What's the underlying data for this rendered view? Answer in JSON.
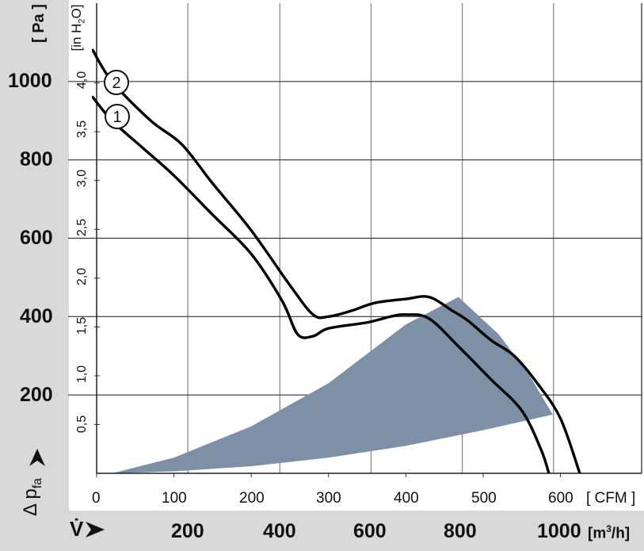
{
  "chart_data": {
    "type": "line",
    "axes": {
      "pressure_pa": {
        "unit": "[ Pa ]",
        "ticks": [
          "1000",
          "800",
          "600",
          "400",
          "200"
        ],
        "tick_values": [
          1000,
          800,
          600,
          400,
          200
        ],
        "range": [
          0,
          1200
        ]
      },
      "pressure_inh2o": {
        "unit": "[in H2O]",
        "unit_parts": [
          "[in H",
          "2",
          "O]"
        ],
        "ticks": [
          "4,0",
          "3,5",
          "3,0",
          "2,5",
          "2,0",
          "1,5",
          "1,0",
          "0,5"
        ],
        "tick_values": [
          4.0,
          3.5,
          3.0,
          2.5,
          2.0,
          1.5,
          1.0,
          0.5
        ]
      },
      "flow_cfm": {
        "unit": "[ CFM ]",
        "ticks": [
          "0",
          "100",
          "200",
          "300",
          "400",
          "500",
          "600"
        ],
        "tick_values": [
          0,
          100,
          200,
          300,
          400,
          500,
          600
        ],
        "range": [
          0,
          705
        ]
      },
      "flow_m3h": {
        "unit": "[m³/h]",
        "unit_parts": [
          "[m",
          "3",
          "/h]"
        ],
        "ticks": [
          "200",
          "400",
          "600",
          "800",
          "1000"
        ],
        "tick_values": [
          200,
          400,
          600,
          800,
          1000
        ]
      },
      "y_symbol": "Δ p",
      "y_symbol_sub": "fa",
      "x_symbol": "V̇"
    },
    "grid": true,
    "series": [
      {
        "name": "2",
        "color": "#000000",
        "points_cfm_pa": [
          [
            -5,
            1080
          ],
          [
            20,
            1000
          ],
          [
            70,
            900
          ],
          [
            110,
            840
          ],
          [
            150,
            740
          ],
          [
            200,
            620
          ],
          [
            250,
            480
          ],
          [
            280,
            405
          ],
          [
            300,
            400
          ],
          [
            330,
            415
          ],
          [
            360,
            435
          ],
          [
            400,
            445
          ],
          [
            430,
            450
          ],
          [
            460,
            415
          ],
          [
            480,
            390
          ],
          [
            510,
            340
          ],
          [
            540,
            300
          ],
          [
            570,
            230
          ],
          [
            600,
            140
          ],
          [
            625,
            0
          ]
        ]
      },
      {
        "name": "1",
        "color": "#000000",
        "points_cfm_pa": [
          [
            -5,
            960
          ],
          [
            20,
            900
          ],
          [
            60,
            830
          ],
          [
            100,
            760
          ],
          [
            150,
            660
          ],
          [
            200,
            560
          ],
          [
            240,
            440
          ],
          [
            260,
            355
          ],
          [
            280,
            350
          ],
          [
            300,
            370
          ],
          [
            350,
            385
          ],
          [
            380,
            400
          ],
          [
            400,
            405
          ],
          [
            430,
            395
          ],
          [
            470,
            320
          ],
          [
            510,
            240
          ],
          [
            550,
            160
          ],
          [
            575,
            60
          ],
          [
            585,
            0
          ]
        ]
      }
    ],
    "operating_region": {
      "color": "#7d90a5",
      "upper_boundary_cfm_pa": [
        [
          20,
          0
        ],
        [
          100,
          40
        ],
        [
          200,
          120
        ],
        [
          300,
          230
        ],
        [
          400,
          380
        ],
        [
          468,
          450
        ]
      ],
      "right_boundary_cfm_pa": [
        [
          468,
          450
        ],
        [
          520,
          355
        ],
        [
          560,
          250
        ],
        [
          590,
          150
        ]
      ],
      "lower_boundary_cfm_pa": [
        [
          590,
          150
        ],
        [
          500,
          110
        ],
        [
          400,
          70
        ],
        [
          300,
          40
        ],
        [
          200,
          18
        ],
        [
          100,
          5
        ],
        [
          20,
          0
        ]
      ]
    }
  }
}
